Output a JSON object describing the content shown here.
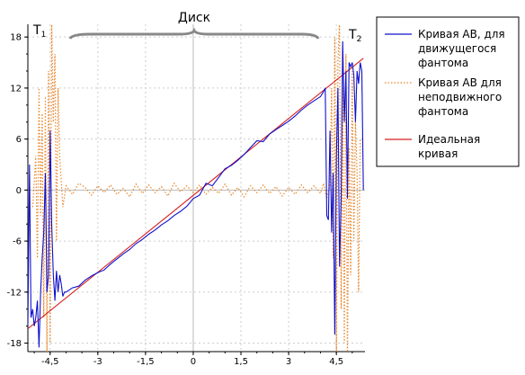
{
  "chart_data": {
    "type": "line",
    "xlim": [
      -5.2,
      5.4
    ],
    "ylim": [
      -19,
      19.5
    ],
    "x_ticks": [
      -4.5,
      -3,
      -1.5,
      0,
      1.5,
      3,
      4.5
    ],
    "x_tick_labels": [
      "-4,5",
      "-3",
      "-1,5",
      "0",
      "1,5",
      "3",
      "4,5"
    ],
    "y_ticks": [
      -18,
      -12,
      -6,
      0,
      6,
      12,
      18
    ],
    "y_tick_labels": [
      "-18",
      "-12",
      "-6",
      "0",
      "6",
      "12",
      "18"
    ],
    "grid": true,
    "legend_position": "right",
    "annotations": {
      "disk_label": "Диск",
      "t1_label": "T",
      "t1_sub": "1",
      "t2_label": "T",
      "t2_sub": "2"
    },
    "series": [
      {
        "name_lines": [
          "Кривая АВ, для",
          "движущегося",
          "фантома"
        ],
        "color": "#1010cc",
        "style": "solid",
        "x": [
          -5.2,
          -5.15,
          -5.1,
          -5.05,
          -5.0,
          -4.95,
          -4.9,
          -4.85,
          -4.8,
          -4.75,
          -4.7,
          -4.65,
          -4.6,
          -4.55,
          -4.5,
          -4.45,
          -4.4,
          -4.35,
          -4.3,
          -4.25,
          -4.2,
          -4.15,
          -4.1,
          -4.05,
          -4.0,
          -3.8,
          -3.6,
          -3.4,
          -3.2,
          -3.0,
          -2.8,
          -2.6,
          -2.4,
          -2.2,
          -2.0,
          -1.8,
          -1.6,
          -1.4,
          -1.2,
          -1.0,
          -0.8,
          -0.6,
          -0.4,
          -0.2,
          0.0,
          0.2,
          0.4,
          0.6,
          0.8,
          1.0,
          1.2,
          1.4,
          1.6,
          1.8,
          2.0,
          2.2,
          2.4,
          2.6,
          2.8,
          3.0,
          3.2,
          3.4,
          3.6,
          3.8,
          4.0,
          4.1,
          4.15,
          4.2,
          4.25,
          4.3,
          4.35,
          4.4,
          4.45,
          4.5,
          4.55,
          4.6,
          4.65,
          4.7,
          4.75,
          4.8,
          4.85,
          4.9,
          4.95,
          5.0,
          5.05,
          5.1,
          5.15,
          5.2,
          5.25,
          5.3,
          5.35
        ],
        "y": [
          -16,
          3,
          -15,
          -14,
          -16,
          -15,
          -13,
          -18.5,
          -12,
          -8,
          -5,
          2,
          -12,
          -10,
          7,
          -4,
          -10,
          -13,
          -9.5,
          -12,
          -10,
          -11,
          -12.5,
          -12,
          -12,
          -11.5,
          -11.3,
          -10.6,
          -10.1,
          -9.7,
          -9.4,
          -8.7,
          -8.1,
          -7.5,
          -7.0,
          -6.3,
          -5.8,
          -5.2,
          -4.7,
          -4.1,
          -3.6,
          -3.0,
          -2.5,
          -1.9,
          -1.0,
          -0.6,
          0.8,
          0.5,
          1.5,
          2.5,
          2.9,
          3.5,
          4.2,
          5.0,
          5.8,
          5.7,
          6.6,
          7.1,
          7.6,
          8.1,
          8.7,
          9.4,
          10.0,
          10.5,
          11.0,
          11.6,
          12,
          -3,
          -3.5,
          7,
          -5,
          2,
          -17,
          4,
          12,
          -9,
          -1,
          17.5,
          8,
          14,
          -1,
          15,
          14.5,
          15,
          13.5,
          8,
          14,
          12.5,
          15,
          14,
          0
        ]
      },
      {
        "name_lines": [
          "Кривая АВ для",
          "неподвижного",
          "фантома"
        ],
        "color": "#e8862a",
        "style": "dotted",
        "x": [
          -5.05,
          -5.0,
          -4.95,
          -4.9,
          -4.85,
          -4.8,
          -4.75,
          -4.7,
          -4.65,
          -4.6,
          -4.55,
          -4.5,
          -4.45,
          -4.4,
          -4.35,
          -4.3,
          -4.25,
          -4.2,
          -4.1,
          -4.0,
          -3.8,
          -3.6,
          -3.4,
          -3.2,
          -3.0,
          -2.8,
          -2.6,
          -2.4,
          -2.2,
          -2.0,
          -1.8,
          -1.6,
          -1.4,
          -1.2,
          -1.0,
          -0.8,
          -0.6,
          -0.4,
          -0.2,
          0.0,
          0.2,
          0.4,
          0.6,
          0.8,
          1.0,
          1.2,
          1.4,
          1.6,
          1.8,
          2.0,
          2.2,
          2.4,
          2.6,
          2.8,
          3.0,
          3.2,
          3.4,
          3.6,
          3.8,
          4.0,
          4.1,
          4.2,
          4.3,
          4.35,
          4.4,
          4.45,
          4.5,
          4.55,
          4.6,
          4.65,
          4.7,
          4.75,
          4.8,
          4.85,
          4.9,
          4.95,
          5.0,
          5.05,
          5.1,
          5.15,
          5.2,
          5.25
        ],
        "y": [
          -2,
          1,
          4,
          -8,
          12,
          -3,
          9,
          -15,
          11,
          -20,
          14,
          -18,
          20,
          8,
          16,
          -6,
          12,
          4,
          -2,
          0.5,
          -0.5,
          0.8,
          0.3,
          -0.6,
          0.5,
          -0.3,
          0.6,
          -0.5,
          0.2,
          -0.8,
          0.7,
          -0.4,
          0.6,
          -0.3,
          0.4,
          -0.7,
          0.8,
          -0.2,
          0.5,
          -0.3,
          0.6,
          -0.5,
          0.3,
          -0.4,
          0.7,
          -0.6,
          0.3,
          -0.8,
          0.5,
          -0.3,
          0.6,
          -0.4,
          0.4,
          -0.7,
          0.3,
          -0.5,
          0.6,
          -0.3,
          0.5,
          -0.4,
          0.8,
          -1,
          0.5,
          12,
          -8,
          18,
          -20,
          15,
          20,
          -14,
          12,
          -18,
          16,
          -20,
          5,
          -10,
          14,
          -6,
          8,
          2,
          -12,
          6
        ]
      },
      {
        "name_lines": [
          "Идеальная",
          "кривая"
        ],
        "color": "#d62020",
        "style": "solid",
        "x": [
          -5.2,
          5.35
        ],
        "y": [
          -16.3,
          15.5
        ]
      }
    ]
  }
}
